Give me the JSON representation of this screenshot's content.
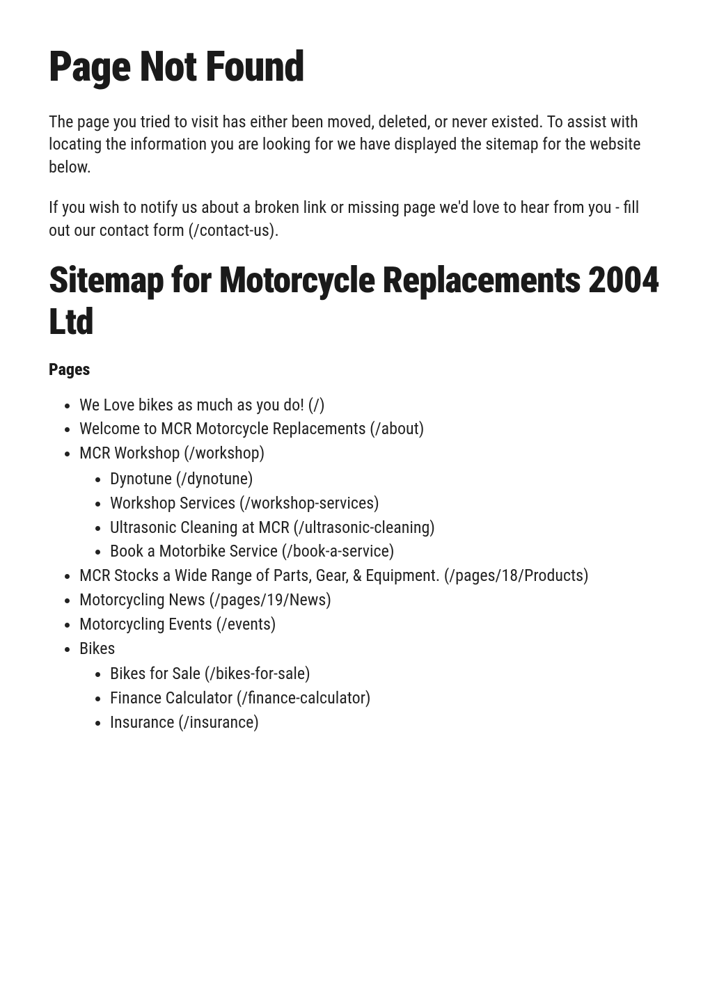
{
  "heading_main": "Page Not Found",
  "para_1": "The page you tried to visit has either been moved, deleted, or never existed. To assist with locating the information you are looking for we have displayed the sitemap for the website below.",
  "para_2_prefix": "If you wish to notify us about a broken link or missing page we'd love to hear from you - fill out our ",
  "contact_link": "contact form (/contact-us)",
  "para_2_suffix": ".",
  "heading_sitemap": "Sitemap for Motorcycle Replacements 2004 Ltd",
  "pages_heading": "Pages",
  "sitemap": [
    {
      "label": "We Love bikes as much as you do! (/)"
    },
    {
      "label": "Welcome to MCR Motorcycle Replacements (/about)"
    },
    {
      "label": "MCR Workshop (/workshop)",
      "children": [
        {
          "label": "Dynotune (/dynotune)"
        },
        {
          "label": "Workshop Services (/workshop-services)"
        },
        {
          "label": "Ultrasonic Cleaning at MCR (/ultrasonic-cleaning)"
        },
        {
          "label": "Book a Motorbike Service (/book-a-service)"
        }
      ]
    },
    {
      "label": "MCR Stocks a Wide Range of Parts, Gear, & Equipment. (/pages/18/Products)"
    },
    {
      "label": "Motorcycling News (/pages/19/News)"
    },
    {
      "label": "Motorcycling Events (/events)"
    },
    {
      "label": "Bikes",
      "plain": true,
      "children": [
        {
          "label": "Bikes for Sale (/bikes-for-sale)"
        },
        {
          "label": "Finance Calculator (/finance-calculator)"
        },
        {
          "label": "Insurance (/insurance)"
        }
      ]
    }
  ]
}
